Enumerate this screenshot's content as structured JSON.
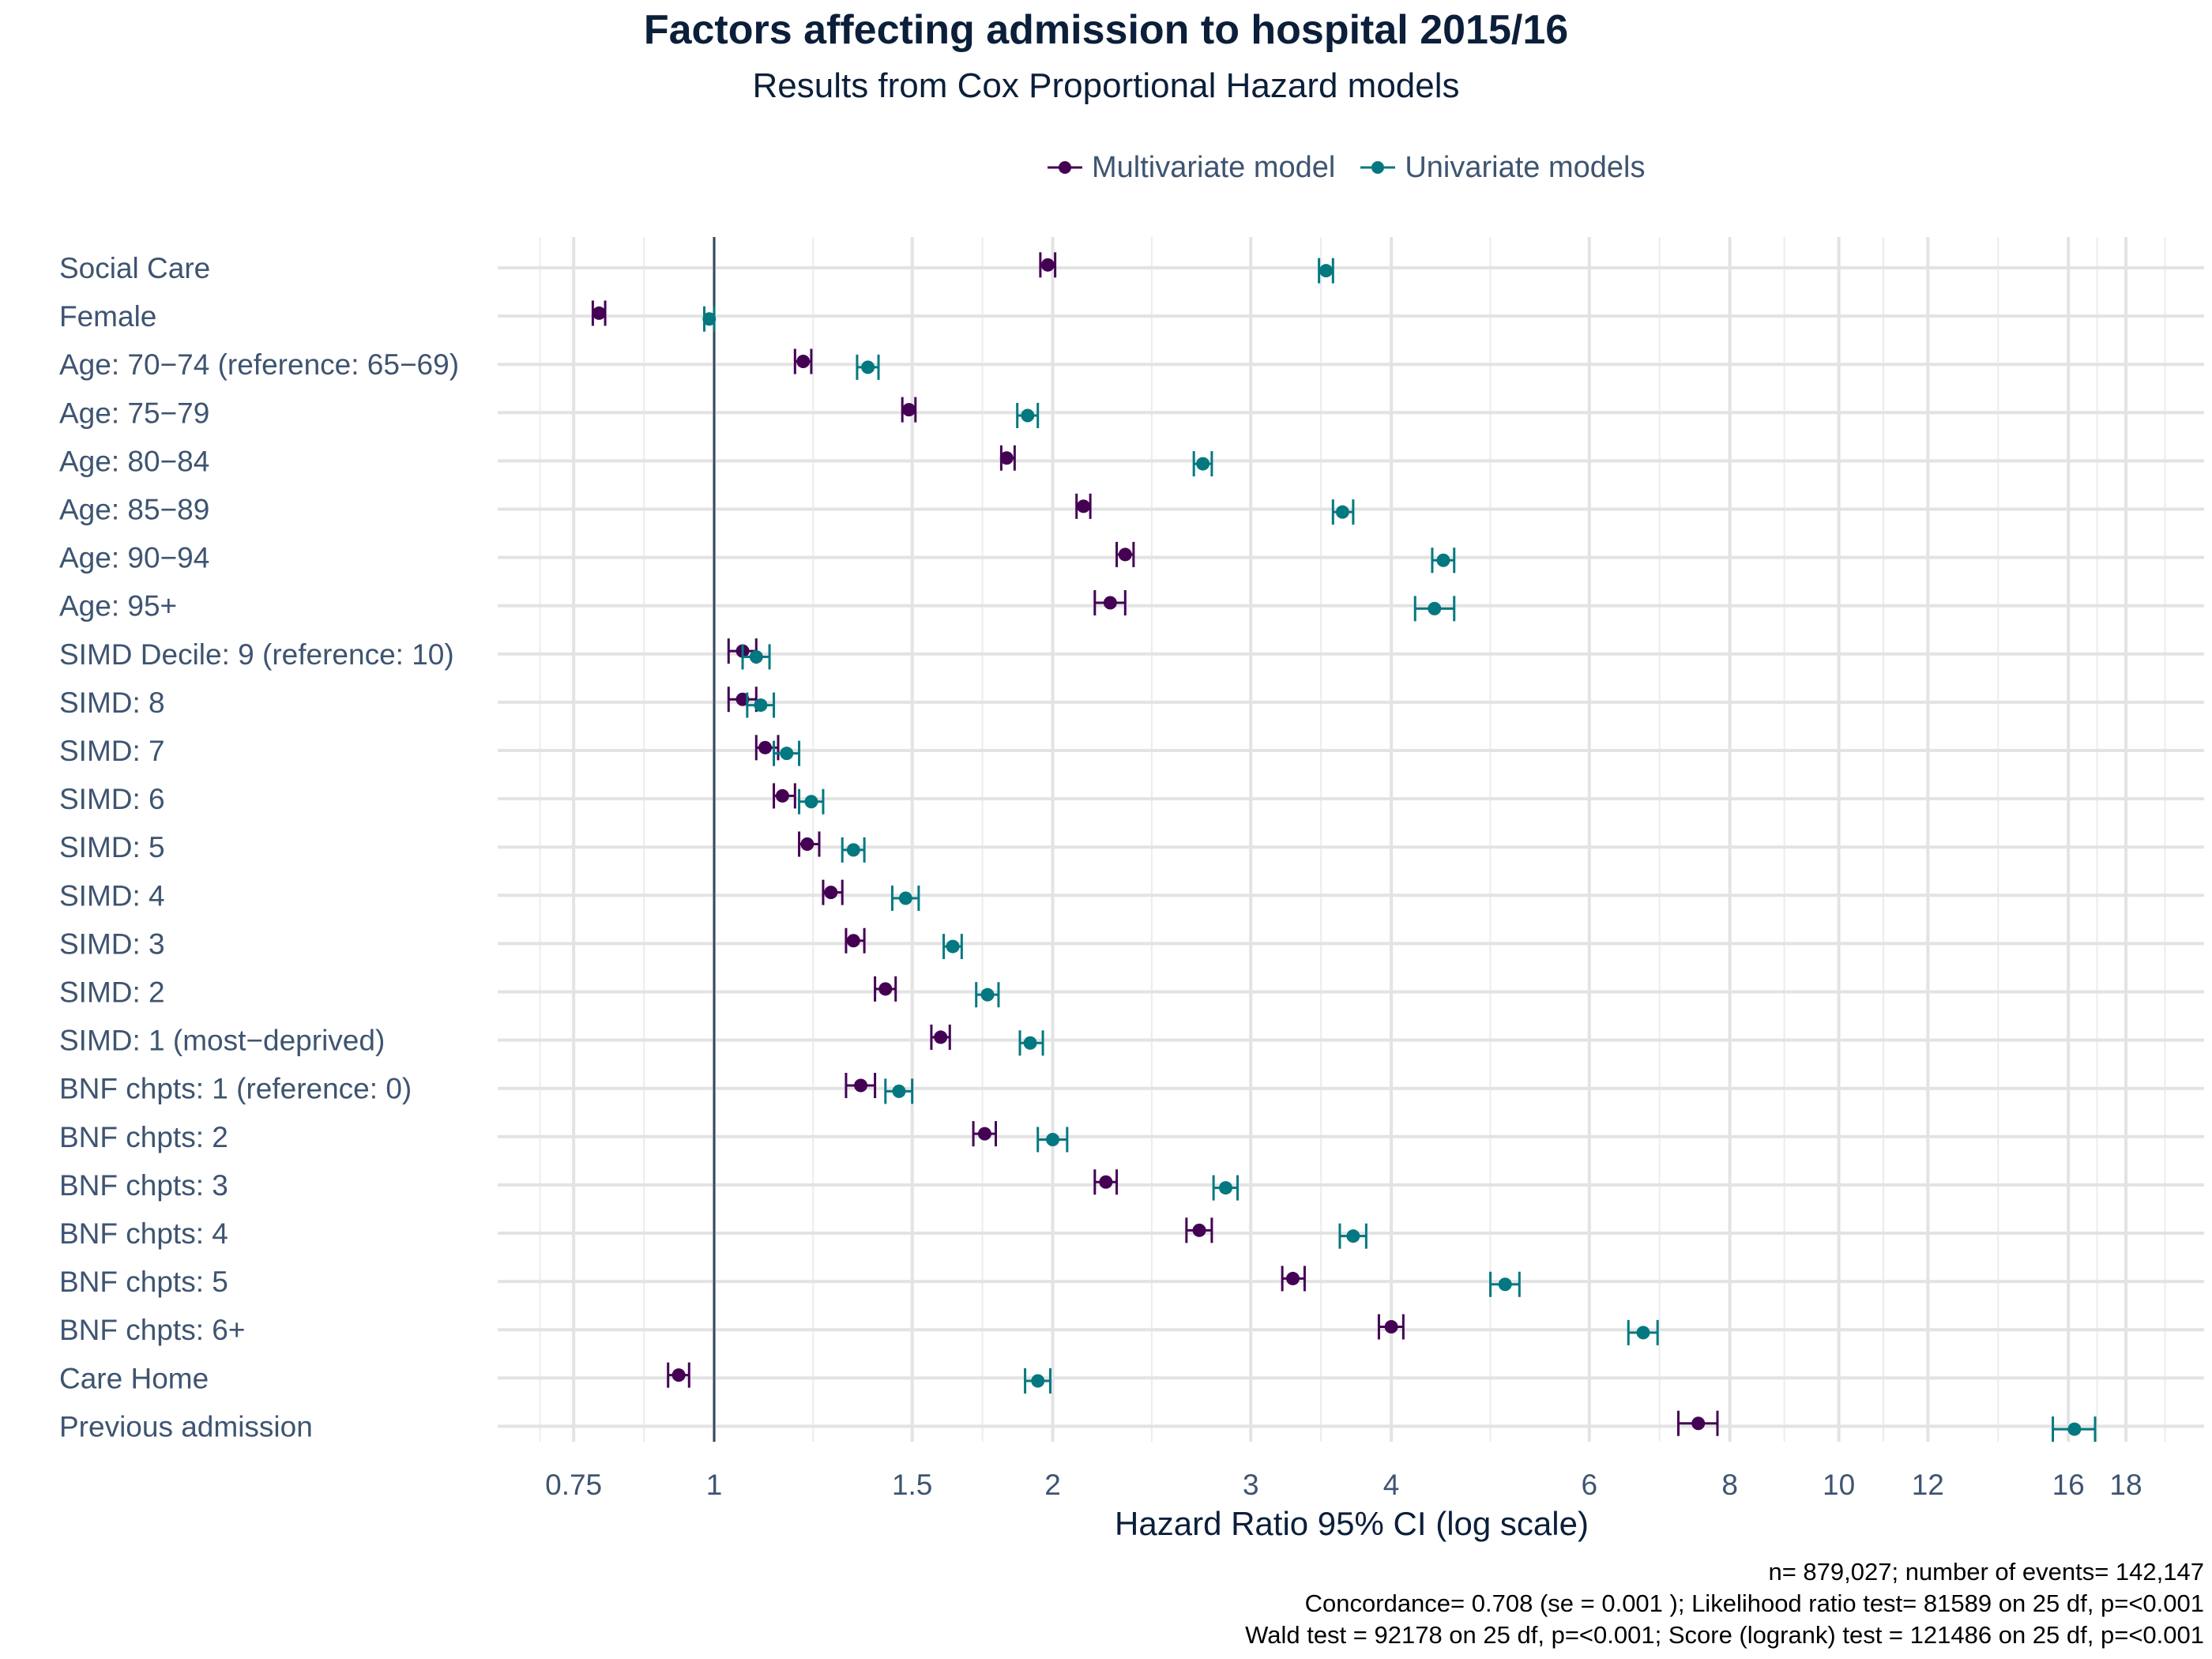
{
  "chart_data": {
    "type": "forest",
    "title": "Factors affecting admission to hospital 2015/16",
    "subtitle": "Results from Cox Proportional Hazard models",
    "xlabel": "Hazard Ratio 95% CI (log scale)",
    "x_scale": "log",
    "xlim": [
      0.66,
      20
    ],
    "x_ticks": [
      0.75,
      1,
      1.5,
      2,
      3,
      4,
      6,
      8,
      10,
      12,
      16,
      18
    ],
    "x_tick_labels": [
      "0.75",
      "1",
      "1.5",
      "2",
      "3",
      "4",
      "6",
      "8",
      "10",
      "12",
      "16",
      "18"
    ],
    "reference_line": 1,
    "legend_position": "top",
    "grid": true,
    "categories": [
      "Social Care",
      "Female",
      "Age: 70−74 (reference: 65−69)",
      "Age: 75−79",
      "Age: 80−84",
      "Age: 85−89",
      "Age: 90−94",
      "Age: 95+",
      "SIMD Decile: 9 (reference: 10)",
      "SIMD: 8",
      "SIMD: 7",
      "SIMD: 6",
      "SIMD: 5",
      "SIMD: 4",
      "SIMD: 3",
      "SIMD: 2",
      "SIMD: 1 (most−deprived)",
      "BNF chpts: 1 (reference: 0)",
      "BNF chpts: 2",
      "BNF chpts: 3",
      "BNF chpts: 4",
      "BNF chpts: 5",
      "BNF chpts: 6+",
      "Care Home",
      "Previous admission"
    ],
    "series": [
      {
        "name": "Multivariate model",
        "color": "#440154",
        "values": [
          1.98,
          0.79,
          1.2,
          1.49,
          1.82,
          2.13,
          2.32,
          2.25,
          1.06,
          1.06,
          1.11,
          1.15,
          1.21,
          1.27,
          1.33,
          1.42,
          1.59,
          1.35,
          1.74,
          2.23,
          2.7,
          3.27,
          4.0,
          0.93,
          7.5
        ],
        "lower": [
          1.95,
          0.78,
          1.18,
          1.47,
          1.8,
          2.1,
          2.28,
          2.18,
          1.03,
          1.03,
          1.09,
          1.13,
          1.19,
          1.25,
          1.31,
          1.39,
          1.56,
          1.31,
          1.7,
          2.18,
          2.63,
          3.2,
          3.9,
          0.91,
          7.2
        ],
        "upper": [
          2.01,
          0.8,
          1.22,
          1.51,
          1.85,
          2.16,
          2.36,
          2.32,
          1.09,
          1.09,
          1.14,
          1.18,
          1.24,
          1.3,
          1.36,
          1.45,
          1.62,
          1.39,
          1.78,
          2.28,
          2.77,
          3.35,
          4.1,
          0.95,
          7.8
        ]
      },
      {
        "name": "Univariate models",
        "color": "#047881",
        "values": [
          3.5,
          0.99,
          1.37,
          1.9,
          2.72,
          3.62,
          4.45,
          4.37,
          1.09,
          1.1,
          1.16,
          1.22,
          1.33,
          1.48,
          1.63,
          1.75,
          1.91,
          1.46,
          2.0,
          2.85,
          3.7,
          5.05,
          6.7,
          1.94,
          16.2
        ],
        "lower": [
          3.45,
          0.98,
          1.34,
          1.86,
          2.67,
          3.55,
          4.35,
          4.2,
          1.06,
          1.07,
          1.13,
          1.19,
          1.3,
          1.44,
          1.6,
          1.71,
          1.87,
          1.42,
          1.94,
          2.78,
          3.6,
          4.9,
          6.5,
          1.89,
          15.5
        ],
        "upper": [
          3.55,
          1.0,
          1.4,
          1.94,
          2.77,
          3.7,
          4.55,
          4.55,
          1.12,
          1.13,
          1.19,
          1.25,
          1.36,
          1.52,
          1.66,
          1.79,
          1.96,
          1.5,
          2.06,
          2.92,
          3.8,
          5.2,
          6.9,
          1.99,
          16.9
        ]
      }
    ],
    "caption": [
      "n= 879,027; number of events= 142,147",
      "Concordance= 0.708  (se = 0.001 ); Likelihood ratio test= 81589  on 25 df, p=<0.001",
      "Wald test = 92178  on 25 df, p=<0.001; Score (logrank) test = 121486  on 25 df, p=<0.001"
    ]
  }
}
